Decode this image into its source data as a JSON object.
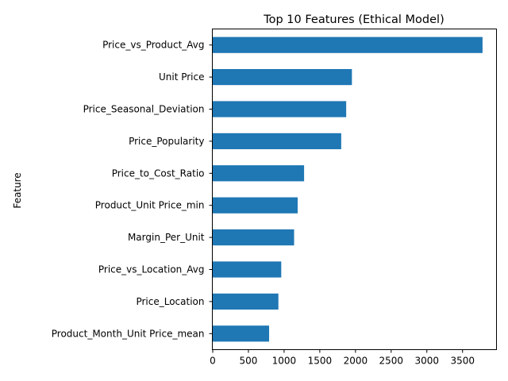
{
  "chart_data": {
    "type": "bar",
    "orientation": "horizontal",
    "title": "Top 10 Features (Ethical Model)",
    "xlabel": "",
    "ylabel": "Feature",
    "categories": [
      "Price_vs_Product_Avg",
      "Unit Price",
      "Price_Seasonal_Deviation",
      "Price_Popularity",
      "Price_to_Cost_Ratio",
      "Product_Unit Price_min",
      "Margin_Per_Unit",
      "Price_vs_Location_Avg",
      "Price_Location",
      "Product_Month_Unit Price_mean"
    ],
    "values": [
      3780,
      1950,
      1870,
      1800,
      1280,
      1190,
      1140,
      960,
      920,
      790
    ],
    "xlim": [
      0,
      3970
    ],
    "xticks": [
      0,
      500,
      1000,
      1500,
      2000,
      2500,
      3000,
      3500
    ],
    "grid": false,
    "legend": "none",
    "bar_color": "#1f77b4"
  }
}
